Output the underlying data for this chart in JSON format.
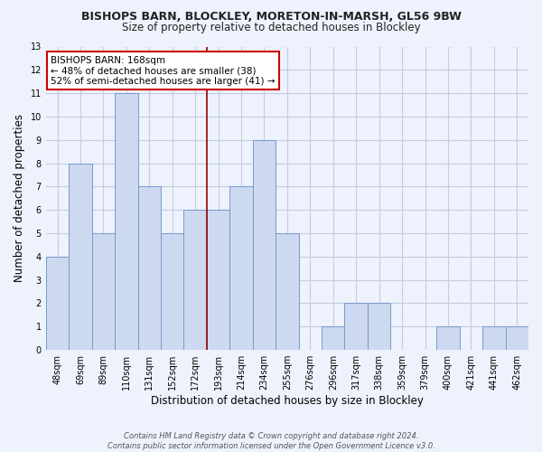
{
  "title1": "BISHOPS BARN, BLOCKLEY, MORETON-IN-MARSH, GL56 9BW",
  "title2": "Size of property relative to detached houses in Blockley",
  "xlabel": "Distribution of detached houses by size in Blockley",
  "ylabel": "Number of detached properties",
  "categories": [
    "48sqm",
    "69sqm",
    "89sqm",
    "110sqm",
    "131sqm",
    "152sqm",
    "172sqm",
    "193sqm",
    "214sqm",
    "234sqm",
    "255sqm",
    "276sqm",
    "296sqm",
    "317sqm",
    "338sqm",
    "359sqm",
    "379sqm",
    "400sqm",
    "421sqm",
    "441sqm",
    "462sqm"
  ],
  "values": [
    4,
    8,
    5,
    11,
    7,
    5,
    6,
    6,
    7,
    9,
    5,
    0,
    1,
    2,
    2,
    0,
    0,
    1,
    0,
    1,
    1
  ],
  "bar_color": "#ccd9f0",
  "bar_edge_color": "#7799cc",
  "vline_color": "#990000",
  "vline_index": 6.5,
  "ylim": [
    0,
    13
  ],
  "yticks": [
    0,
    1,
    2,
    3,
    4,
    5,
    6,
    7,
    8,
    9,
    10,
    11,
    12,
    13
  ],
  "annotation_text": "BISHOPS BARN: 168sqm\n← 48% of detached houses are smaller (38)\n52% of semi-detached houses are larger (41) →",
  "annotation_box_color": "#ffffff",
  "annotation_box_edge": "#cc0000",
  "footer": "Contains HM Land Registry data © Crown copyright and database right 2024.\nContains public sector information licensed under the Open Government Licence v3.0.",
  "background_color": "#eef2fc",
  "grid_color": "#c5ccdd"
}
